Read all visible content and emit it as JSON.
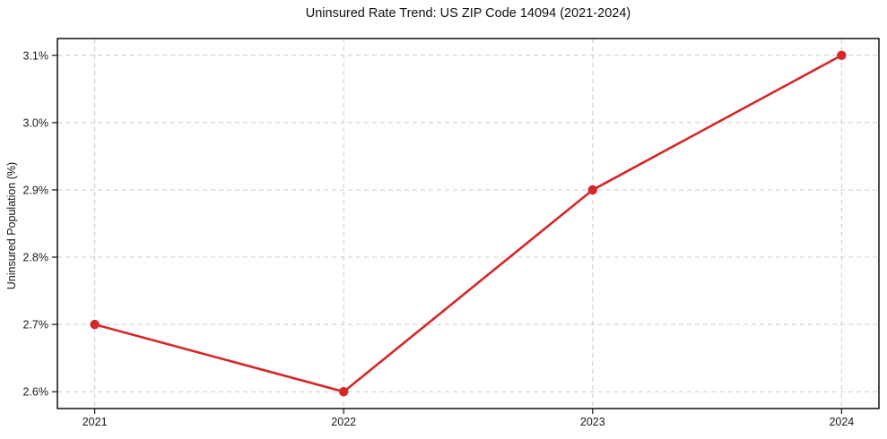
{
  "chart_data": {
    "type": "line",
    "title": "Uninsured Rate Trend: US ZIP Code 14094 (2021-2024)",
    "xlabel": "",
    "ylabel": "Uninsured Population (%)",
    "x": [
      2021,
      2022,
      2023,
      2024
    ],
    "x_tick_labels": [
      "2021",
      "2022",
      "2023",
      "2024"
    ],
    "y_ticks": [
      2.6,
      2.7,
      2.8,
      2.9,
      3.0,
      3.1
    ],
    "y_tick_labels": [
      "2.6%",
      "2.7%",
      "2.8%",
      "2.9%",
      "3.0%",
      "3.1%"
    ],
    "series": [
      {
        "name": "Uninsured Rate",
        "values": [
          2.7,
          2.6,
          2.9,
          3.1
        ]
      }
    ],
    "xlim": [
      2020.85,
      2024.15
    ],
    "ylim": [
      2.575,
      3.125
    ],
    "grid": true,
    "legend": false,
    "colors": {
      "line": "#d62728",
      "marker": "#d62728",
      "grid": "#cccccc",
      "spine": "#000000",
      "text": "#1a1a1a"
    }
  }
}
